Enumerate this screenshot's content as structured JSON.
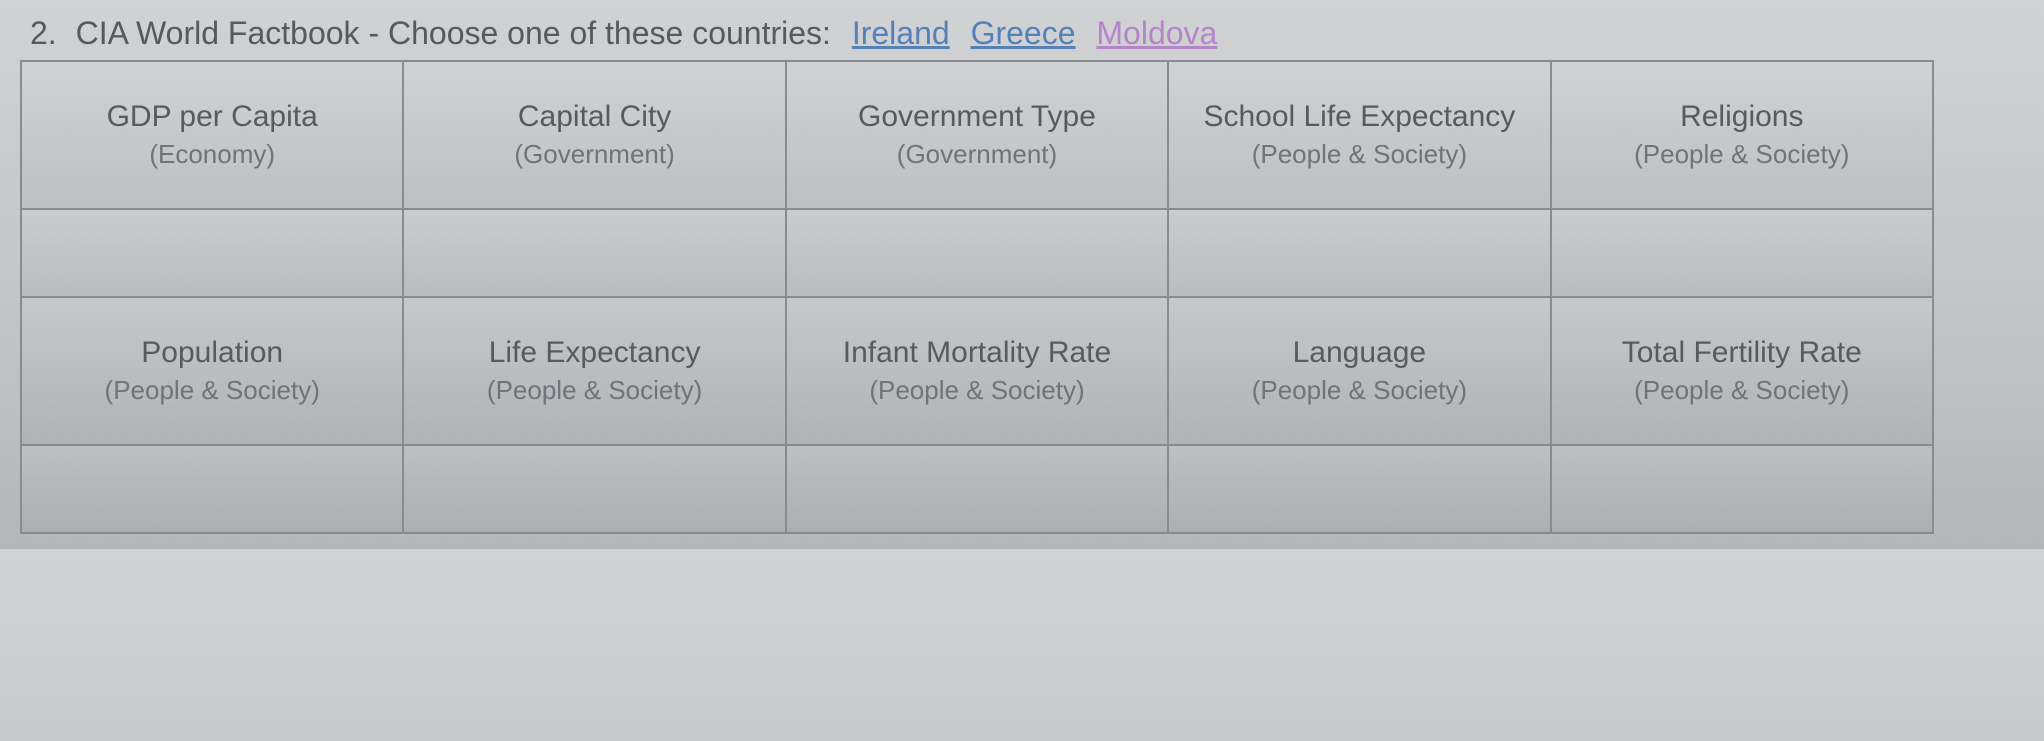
{
  "question": {
    "number": "2.",
    "prompt": "CIA World Factbook - Choose one of these countries:",
    "links": [
      {
        "label": "Ireland",
        "visited": false
      },
      {
        "label": "Greece",
        "visited": false
      },
      {
        "label": "Moldova",
        "visited": true
      }
    ]
  },
  "table": {
    "row1": [
      {
        "title": "GDP per Capita",
        "category": "(Economy)"
      },
      {
        "title": "Capital City",
        "category": "(Government)"
      },
      {
        "title": "Government Type",
        "category": "(Government)"
      },
      {
        "title": "School Life Expectancy",
        "category": "(People & Society)"
      },
      {
        "title": "Religions",
        "category": "(People & Society)"
      }
    ],
    "row2": [
      {
        "title": "",
        "category": ""
      },
      {
        "title": "",
        "category": ""
      },
      {
        "title": "",
        "category": ""
      },
      {
        "title": "",
        "category": ""
      },
      {
        "title": "",
        "category": ""
      }
    ],
    "row3": [
      {
        "title": "Population",
        "category": "(People & Society)"
      },
      {
        "title": "Life Expectancy",
        "category": "(People & Society)"
      },
      {
        "title": "Infant Mortality Rate",
        "category": "(People & Society)"
      },
      {
        "title": "Language",
        "category": "(People & Society)"
      },
      {
        "title": "Total Fertility Rate",
        "category": "(People & Society)"
      }
    ],
    "row4": [
      {
        "title": "",
        "category": ""
      },
      {
        "title": "",
        "category": ""
      },
      {
        "title": "",
        "category": ""
      },
      {
        "title": "",
        "category": ""
      },
      {
        "title": "",
        "category": ""
      }
    ]
  }
}
